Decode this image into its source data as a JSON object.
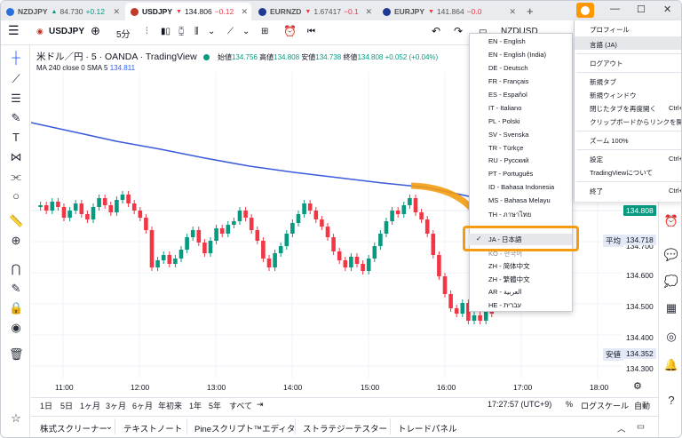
{
  "tabs": [
    {
      "symbol": "NZDJPY",
      "direction": "up",
      "price": "84.730",
      "change": "+0.12",
      "icon_color": "#2a6fdb"
    },
    {
      "symbol": "USDJPY",
      "direction": "down",
      "price": "134.806",
      "change": "−0.12",
      "icon_color": "#c0392b"
    },
    {
      "symbol": "EURNZD",
      "direction": "down",
      "price": "1.67417",
      "change": "−0.1",
      "icon_color": "#1f3a93"
    },
    {
      "symbol": "EURJPY",
      "direction": "down",
      "price": "141.864",
      "change": "−0.0",
      "icon_color": "#1f3a93"
    }
  ],
  "window": {
    "new_tab": "+",
    "minimize": "—",
    "maximize": "☐",
    "close": "✕"
  },
  "toolbar": {
    "symbol": "USDJPY",
    "interval": "5分",
    "second_symbol": "NZDUSD"
  },
  "legend": {
    "title": "米ドル／円 · 5 · OANDA · TradingView",
    "open_label": "始値",
    "open": "134.756",
    "high_label": "高値",
    "high": "134.808",
    "low_label": "安値",
    "low": "134.738",
    "close_label": "終値",
    "close": "134.808",
    "change": "+0.052 (+0.04%)",
    "ma_label": "MA 240 close 0 SMA 5",
    "ma_value": "134.811"
  },
  "price_axis": [
    "134.800",
    "134.700",
    "134.600",
    "134.500",
    "134.400",
    "134.300"
  ],
  "price_badges": {
    "current": "134.808",
    "avg_label": "平均",
    "avg": "134.718",
    "low_label": "安値",
    "low": "134.352"
  },
  "time_axis": [
    "11:00",
    "12:00",
    "13:00",
    "14:00",
    "15:00",
    "16:00",
    "17:00",
    "18:00"
  ],
  "ranges": [
    "1日",
    "5日",
    "1ヶ月",
    "3ヶ月",
    "6ヶ月",
    "年初来",
    "1年",
    "5年",
    "すべて"
  ],
  "status": {
    "clock": "17:27:57 (UTC+9)",
    "percent": "%",
    "log": "ログスケール",
    "auto": "自動"
  },
  "panels": [
    "株式スクリーナー",
    "テキストノート",
    "Pineスクリプト™エディタ",
    "ストラテジーテスター",
    "トレードパネル"
  ],
  "language_menu": [
    "EN - English",
    "EN - English (India)",
    "DE - Deutsch",
    "FR - Français",
    "ES - Español",
    "IT - Italiano",
    "PL - Polski",
    "SV - Svenska",
    "TR - Türkçe",
    "RU - Русский",
    "PT - Português",
    "ID - Bahasa Indonesia",
    "MS - Bahasa Melayu",
    "TH - ภาษาไทย",
    "JA - 日本語",
    "KO - 한국어",
    "ZH - 简体中文",
    "ZH - 繁體中文",
    "AR - العربية",
    "HE - עברית"
  ],
  "main_menu": {
    "profile": "プロフィール",
    "language": "言語 (JA)",
    "logout": "ログアウト",
    "new_tab": "新規タブ",
    "new_window": "新規ウィンドウ",
    "reopen_tab": "閉じたタブを再度開く",
    "reopen_key": "Ctrl+",
    "open_link": "クリップボードからリンクを開く",
    "zoom": "ズーム 100%",
    "settings": "設定",
    "settings_key": "Ctrl+",
    "about": "TradingViewについて",
    "quit": "終了",
    "quit_key": "Ctrl+"
  },
  "colors": {
    "up": "#089981",
    "down": "#f23645",
    "ma": "#3b5bdb",
    "accent": "#f39c12"
  }
}
